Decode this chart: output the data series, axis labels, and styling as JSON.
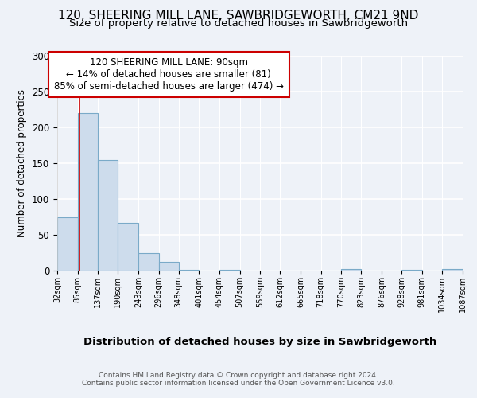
{
  "title1": "120, SHEERING MILL LANE, SAWBRIDGEWORTH, CM21 9ND",
  "title2": "Size of property relative to detached houses in Sawbridgeworth",
  "xlabel": "Distribution of detached houses by size in Sawbridgeworth",
  "ylabel": "Number of detached properties",
  "footer1": "Contains HM Land Registry data © Crown copyright and database right 2024.",
  "footer2": "Contains public sector information licensed under the Open Government Licence v3.0.",
  "annotation_line1": "120 SHEERING MILL LANE: 90sqm",
  "annotation_line2": "← 14% of detached houses are smaller (81)",
  "annotation_line3": "85% of semi-detached houses are larger (474) →",
  "bin_edges": [
    32,
    85,
    137,
    190,
    243,
    296,
    348,
    401,
    454,
    507,
    559,
    612,
    665,
    718,
    770,
    823,
    876,
    928,
    981,
    1034,
    1087
  ],
  "bar_heights": [
    75,
    220,
    155,
    67,
    25,
    12,
    1,
    0,
    1,
    0,
    0,
    0,
    0,
    0,
    2,
    0,
    0,
    1,
    0,
    2
  ],
  "bar_color": "#cddcec",
  "bar_edge_color": "#7aaac8",
  "property_line_x": 90,
  "property_line_color": "#cc0000",
  "ylim": [
    0,
    300
  ],
  "yticks": [
    0,
    50,
    100,
    150,
    200,
    250,
    300
  ],
  "background_color": "#eef2f8",
  "plot_background": "#eef2f8",
  "grid_color": "#ffffff",
  "title1_fontsize": 11,
  "title2_fontsize": 9.5,
  "annotation_box_color": "#ffffff",
  "annotation_box_edge": "#cc0000",
  "annotation_fontsize": 8.5
}
